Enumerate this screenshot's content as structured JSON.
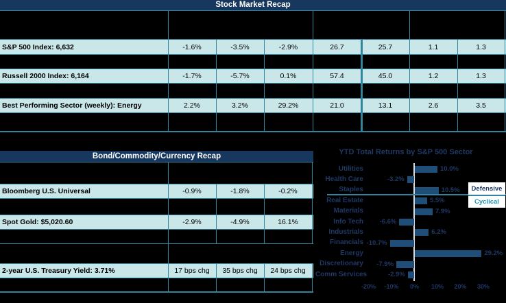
{
  "colors": {
    "background": "#000000",
    "header_navy": "#17375E",
    "border_teal": "#31859C",
    "row_fill": "#C9E6E9",
    "bar_navy": "#1F4E79",
    "chart_text_navy": "#1F3864",
    "axis_line": "#DCDCDC",
    "cyclical_teal": "#1B96B5",
    "legend_bg": "#FFFFFF",
    "table_text": "#000000",
    "title_text": "#FFFFFF"
  },
  "stock_table": {
    "title": "Stock Market Recap",
    "rows": [
      {
        "label": "S&P 500 Index: 6,632",
        "values": [
          "-1.6%",
          "-3.5%",
          "-2.9%",
          "26.7",
          "25.7",
          "1.1",
          "1.3"
        ]
      },
      {
        "label": "Russell 2000 Index: 6,164",
        "values": [
          "-1.7%",
          "-5.7%",
          "0.1%",
          "57.4",
          "45.0",
          "1.2",
          "1.3"
        ]
      },
      {
        "label": "Best Performing Sector (weekly): Energy",
        "values": [
          "2.2%",
          "3.2%",
          "29.2%",
          "21.0",
          "13.1",
          "2.6",
          "3.5"
        ]
      }
    ]
  },
  "bond_table": {
    "title": "Bond/Commodity/Currency Recap",
    "rows": [
      {
        "label": "Bloomberg U.S. Universal",
        "values": [
          "-0.9%",
          "-1.8%",
          "-0.2%"
        ]
      },
      {
        "label": "Spot Gold: $5,020.60",
        "values": [
          "-2.9%",
          "-4.9%",
          "16.1%"
        ]
      },
      {
        "label": "2-year U.S. Treasury Yield: 3.71%",
        "values": [
          "17 bps chg",
          "35 bps chg",
          "24 bps chg"
        ]
      }
    ]
  },
  "chart_data": {
    "type": "bar",
    "orientation": "horizontal",
    "title": "YTD Total Returns by S&P 500 Sector",
    "categories": [
      "Utilities",
      "Health Care",
      "Staples",
      "Real Estate",
      "Materials",
      "Info Tech",
      "Industrials",
      "Financials",
      "Energy",
      "Discretionary",
      "Comm Services"
    ],
    "values": [
      10.0,
      -3.2,
      10.5,
      5.5,
      7.9,
      -6.6,
      6.2,
      -10.7,
      29.2,
      -7.9,
      -2.9
    ],
    "value_labels": [
      "10.0%",
      "-3.2%",
      "10.5%",
      "5.5%",
      "7.9%",
      "-6.6%",
      "6.2%",
      "-10.7%",
      "29.2%",
      "-7.9%",
      "-2.9%"
    ],
    "x_ticks": [
      "-20%",
      "-10%",
      "0%",
      "10%",
      "20%",
      "30%"
    ],
    "x_tick_values": [
      -20,
      -10,
      0,
      10,
      20,
      30
    ],
    "xlim": [
      -20,
      30
    ],
    "grid": false,
    "legend": {
      "defensive": "Defensive",
      "cyclical": "Cyclical"
    },
    "divider_after_index": 2,
    "legend_position": "right"
  }
}
